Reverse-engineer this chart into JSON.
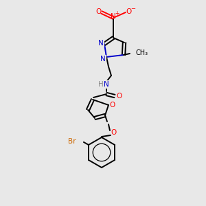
{
  "background_color": "#e8e8e8",
  "figsize": [
    3.0,
    3.0
  ],
  "dpi": 100,
  "colors": {
    "C": "#000000",
    "N": "#0000cc",
    "O": "#ff0000",
    "Br": "#cc6600",
    "H": "#888888",
    "NO2_N": "#ff0000"
  },
  "lw": 1.4,
  "fs": 7.5
}
